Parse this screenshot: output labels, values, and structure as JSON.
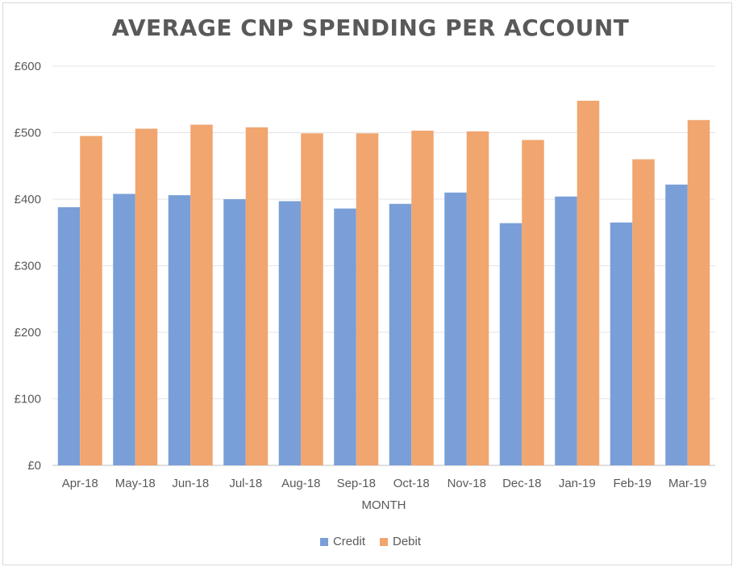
{
  "chart_data": {
    "type": "bar",
    "title": "AVERAGE CNP SPENDING PER ACCOUNT",
    "xlabel": "MONTH",
    "ylabel": "",
    "ylim": [
      0,
      600
    ],
    "yticks": [
      "£0",
      "£100",
      "£200",
      "£300",
      "£400",
      "£500",
      "£600"
    ],
    "grid": true,
    "legend": "bottom",
    "categories": [
      "Apr-18",
      "May-18",
      "Jun-18",
      "Jul-18",
      "Aug-18",
      "Sep-18",
      "Oct-18",
      "Nov-18",
      "Dec-18",
      "Jan-19",
      "Feb-19",
      "Mar-19"
    ],
    "series": [
      {
        "name": "Credit",
        "color": "#7a9fd8",
        "values": [
          388,
          408,
          406,
          400,
          397,
          386,
          393,
          410,
          364,
          404,
          365,
          422
        ]
      },
      {
        "name": "Debit",
        "color": "#f1a56f",
        "values": [
          495,
          506,
          512,
          508,
          499,
          499,
          503,
          502,
          489,
          548,
          460,
          519
        ]
      }
    ]
  }
}
